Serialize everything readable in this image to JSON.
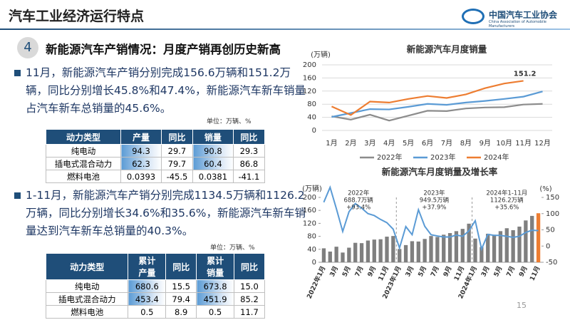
{
  "header": {
    "title": "汽车工业经济运行特点",
    "logo": "中国汽车工业协会",
    "logo_en": "China Association of Automobile Manufacturers"
  },
  "section": {
    "number": "4",
    "title": "新能源汽车产销情况：月度产销再创历史新高"
  },
  "bullet1": "11月，新能源汽车产销分别完成156.6万辆和151.2万辆，同比分别增长45.8%和47.4%，新能源汽车新车销量占汽车新车总销量的45.6%。",
  "table1": {
    "unit": "单位：万辆、%",
    "header": [
      [
        "动力类型"
      ],
      [
        "产量"
      ],
      [
        "同比"
      ],
      [
        "销量"
      ],
      [
        "同比"
      ]
    ],
    "rows": [
      [
        "纯电动",
        "94.3",
        "29.7",
        "90.8",
        "29.3"
      ],
      [
        "插电式混合动力",
        "62.3",
        "79.7",
        "60.4",
        "86.8"
      ],
      [
        "燃料电池",
        "0.0393",
        "-45.5",
        "0.0381",
        "-41.1"
      ]
    ]
  },
  "bullet2": "1-11月，新能源汽车产销分别完成1134.5万辆和1126.2万辆，同比分别增长34.6%和35.6%，新能源汽车新车销量达到汽车新车总销量的40.3%。",
  "table2": {
    "unit": "单位：万辆、%",
    "header": [
      [
        "动力类型"
      ],
      [
        "累计",
        "产量"
      ],
      [
        "同比"
      ],
      [
        "累计",
        "销量"
      ],
      [
        "同比"
      ]
    ],
    "rows": [
      [
        "纯电动",
        "680.6",
        "15.5",
        "673.8",
        "15.0"
      ],
      [
        "插电式混合动力",
        "453.4",
        "79.4",
        "451.9",
        "85.2"
      ],
      [
        "燃料电池",
        "0.5",
        "8.9",
        "0.5",
        "11.7"
      ]
    ]
  },
  "chart_data": [
    {
      "type": "line",
      "title": "新能源汽车月度销量",
      "y_label": "(万辆)",
      "categories": [
        "1月",
        "2月",
        "3月",
        "4月",
        "5月",
        "6月",
        "7月",
        "8月",
        "9月",
        "10月",
        "11月",
        "12月"
      ],
      "ylim": [
        0,
        200
      ],
      "yticks": [
        0,
        40,
        80,
        120,
        160,
        200
      ],
      "grid": true,
      "legend": "bottom",
      "series": [
        {
          "name": "2022年",
          "color": "#8c8c8c",
          "values": [
            43,
            33,
            48,
            30,
            45,
            60,
            59,
            67,
            70,
            71,
            79,
            81
          ]
        },
        {
          "name": "2023年",
          "color": "#5b9bd5",
          "values": [
            41,
            53,
            65,
            64,
            72,
            81,
            78,
            85,
            90,
            96,
            103,
            119
          ]
        },
        {
          "name": "2024年",
          "color": "#ed7d31",
          "values": [
            73,
            47,
            88,
            85,
            96,
            105,
            99,
            110,
            129,
            143,
            151.2,
            null
          ],
          "value_labels": [
            null,
            null,
            null,
            null,
            null,
            null,
            null,
            null,
            null,
            null,
            "151.2",
            null
          ]
        }
      ]
    },
    {
      "type": "bar_line",
      "title": "新能源汽车月度销量及增长率",
      "y_label": "(万辆)",
      "y2_label": "(%)",
      "categories": [
        "2022年1月",
        null,
        "3月",
        null,
        "5月",
        null,
        "7月",
        null,
        "9月",
        null,
        "11月",
        null,
        "2023年1月",
        null,
        "3月",
        null,
        "5月",
        null,
        "7月",
        null,
        "9月",
        null,
        "11月",
        null,
        "2024年1月",
        null,
        "3月",
        null,
        "5月",
        null,
        "7月",
        null,
        "9月",
        null,
        "11月"
      ],
      "ylim": [
        0,
        200
      ],
      "yticks": [
        0,
        40,
        80,
        120,
        160,
        200
      ],
      "y2lim": [
        -50,
        150
      ],
      "y2ticks": [
        -50,
        0,
        50,
        100,
        150
      ],
      "annotations": [
        [
          "2022年",
          "688.7万辆",
          "+93.4%"
        ],
        [
          "2023年",
          "949.5万辆",
          "+37.9%"
        ],
        [
          "2024年1-11月",
          "1126.2万辆",
          "+35.6%"
        ]
      ],
      "series": [
        {
          "type": "bar",
          "colors": [
            "#7f7f7f",
            "#7f7f7f",
            "#7f7f7f",
            "#7f7f7f",
            "#7f7f7f",
            "#7f7f7f",
            "#7f7f7f",
            "#7f7f7f",
            "#7f7f7f",
            "#7f7f7f",
            "#7f7f7f",
            "#7f7f7f",
            "#7f7f7f",
            "#7f7f7f",
            "#7f7f7f",
            "#7f7f7f",
            "#7f7f7f",
            "#7f7f7f",
            "#7f7f7f",
            "#7f7f7f",
            "#7f7f7f",
            "#7f7f7f",
            "#7f7f7f",
            "#7f7f7f",
            "#7f7f7f",
            "#7f7f7f",
            "#7f7f7f",
            "#7f7f7f",
            "#7f7f7f",
            "#7f7f7f",
            "#7f7f7f",
            "#7f7f7f",
            "#7f7f7f",
            "#7f7f7f",
            "#ed7d31"
          ],
          "values": [
            43,
            33,
            48,
            30,
            45,
            60,
            59,
            67,
            70,
            71,
            79,
            81,
            41,
            53,
            65,
            64,
            72,
            81,
            78,
            85,
            90,
            96,
            103,
            119,
            73,
            47,
            88,
            85,
            96,
            105,
            99,
            110,
            129,
            143,
            151.2
          ]
        },
        {
          "type": "line",
          "axis": "y2",
          "color": "#5b9bd5",
          "values": [
            135,
            181,
            115,
            45,
            106,
            131,
            117,
            100,
            94,
            82,
            72,
            52,
            -6,
            60,
            35,
            112,
            61,
            35,
            31,
            28,
            28,
            34,
            30,
            47,
            78,
            -9,
            36,
            33,
            33,
            30,
            27,
            30,
            42,
            49,
            47.4
          ]
        }
      ]
    }
  ],
  "page_number": "15"
}
